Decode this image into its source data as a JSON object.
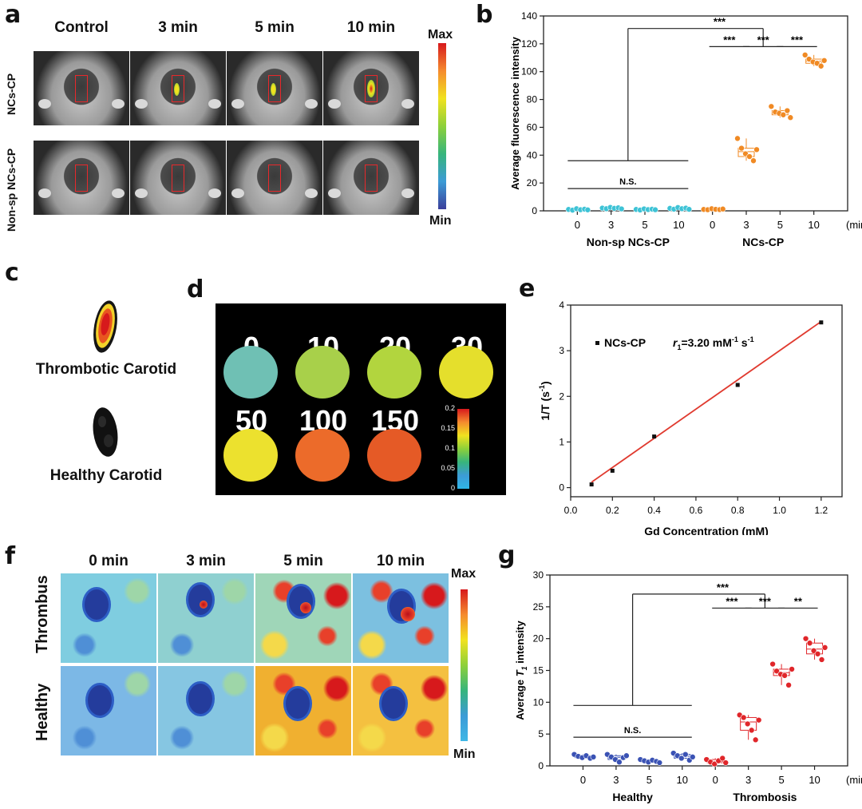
{
  "panels": {
    "a": {
      "label": "a",
      "columns": [
        "Control",
        "3 min",
        "5 min",
        "10 min"
      ],
      "rows": [
        "NCs-CP",
        "Non-sp NCs-CP"
      ],
      "scale": {
        "max": "Max",
        "min": "Min"
      }
    },
    "b": {
      "label": "b"
    },
    "c": {
      "label": "c",
      "items": [
        "Thrombotic Carotid",
        "Healthy Carotid"
      ]
    },
    "d": {
      "label": "d",
      "concentrations": [
        "0",
        "10",
        "20",
        "30",
        "50",
        "100",
        "150"
      ],
      "scale_ticks": [
        "0.2",
        "0.15",
        "0.1",
        "0.05",
        "0"
      ],
      "sample_colors": [
        "#6fc0b4",
        "#a8d04a",
        "#b2d53e",
        "#e5df2c",
        "#ece12e",
        "#ec6b2a",
        "#e55a26"
      ]
    },
    "e": {
      "label": "e"
    },
    "f": {
      "label": "f",
      "columns": [
        "0 min",
        "3 min",
        "5 min",
        "10 min"
      ],
      "rows": [
        "Thrombus",
        "Healthy"
      ],
      "scale": {
        "max": "Max",
        "min": "Min"
      }
    },
    "g": {
      "label": "g"
    }
  },
  "chart_data": [
    {
      "id": "b",
      "type": "scatter",
      "ylabel": "Average fluorescence intensity",
      "ylim": [
        0,
        140
      ],
      "yticks": [
        "0",
        "20",
        "40",
        "60",
        "80",
        "100",
        "120",
        "140"
      ],
      "categories": [
        "0",
        "3",
        "5",
        "10",
        "0",
        "3",
        "5",
        "10"
      ],
      "unit": "(min)",
      "groups": [
        {
          "name": "Non-sp NCs-CP",
          "from": 0,
          "to": 3
        },
        {
          "name": "NCs-CP",
          "from": 4,
          "to": 7
        }
      ],
      "colors": [
        "#3ec3d6",
        "#3ec3d6",
        "#3ec3d6",
        "#3ec3d6",
        "#f08a24",
        "#f08a24",
        "#f08a24",
        "#f08a24"
      ],
      "series": [
        {
          "values": [
            1,
            0.5,
            1.5,
            0.8,
            1.2,
            0.7
          ]
        },
        {
          "values": [
            2,
            1.5,
            2.5,
            1.8,
            2.2,
            1.4
          ]
        },
        {
          "values": [
            1,
            0.6,
            1.4,
            0.9,
            1.2,
            0.8
          ]
        },
        {
          "values": [
            1.8,
            1.2,
            2.4,
            1.5,
            2,
            1.1
          ]
        },
        {
          "values": [
            1,
            0.8,
            1.5,
            1.1,
            0.9,
            1.3
          ]
        },
        {
          "values": [
            52,
            45,
            41,
            39,
            36,
            44
          ]
        },
        {
          "values": [
            75,
            71,
            70,
            69,
            72,
            67
          ]
        },
        {
          "values": [
            112,
            109,
            107,
            106,
            104,
            108
          ]
        }
      ],
      "annotations": {
        "overall": "***",
        "pairs": [
          "***",
          "***",
          "***"
        ],
        "ns": "N.S."
      }
    },
    {
      "id": "e",
      "type": "scatter",
      "xlabel": "Gd Concentration (mM)",
      "ylabel": "1/T (s-1)",
      "xlim": [
        0,
        1.3
      ],
      "ylim": [
        -0.2,
        4
      ],
      "xticks": [
        "0.0",
        "0.2",
        "0.4",
        "0.6",
        "0.8",
        "1.0",
        "1.2"
      ],
      "yticks": [
        "0",
        "1",
        "2",
        "3",
        "4"
      ],
      "x": [
        0.1,
        0.2,
        0.4,
        0.8,
        1.2
      ],
      "y": [
        0.07,
        0.37,
        1.12,
        2.25,
        3.62
      ],
      "fit": {
        "slope": 3.2,
        "intercept": -0.2
      },
      "legend": "NCs-CP",
      "annotation": "r1=3.20 mM-1 s-1",
      "line_color": "#e03a2f"
    },
    {
      "id": "g",
      "type": "scatter",
      "ylabel": "Average T1 intensity",
      "ylim": [
        0,
        30
      ],
      "yticks": [
        "0",
        "5",
        "10",
        "15",
        "20",
        "25",
        "30"
      ],
      "categories": [
        "0",
        "3",
        "5",
        "10",
        "0",
        "3",
        "5",
        "10"
      ],
      "unit": "(min)",
      "groups": [
        {
          "name": "Healthy",
          "from": 0,
          "to": 3
        },
        {
          "name": "Thrombosis",
          "from": 4,
          "to": 7
        }
      ],
      "colors": [
        "#3a52b4",
        "#3a52b4",
        "#3a52b4",
        "#3a52b4",
        "#e0262a",
        "#e0262a",
        "#e0262a",
        "#e0262a"
      ],
      "series": [
        {
          "values": [
            1.8,
            1.5,
            1.3,
            1.6,
            1.2,
            1.4
          ]
        },
        {
          "values": [
            1.8,
            1.4,
            1.0,
            0.6,
            1.3,
            1.6
          ]
        },
        {
          "values": [
            1.0,
            0.8,
            0.6,
            0.9,
            0.7,
            0.5
          ]
        },
        {
          "values": [
            2.0,
            1.6,
            1.2,
            1.8,
            0.9,
            1.4
          ]
        },
        {
          "values": [
            1.0,
            0.6,
            0.3,
            0.8,
            1.2,
            0.5
          ]
        },
        {
          "values": [
            8.0,
            7.6,
            6.6,
            5.6,
            4.1,
            7.2
          ]
        },
        {
          "values": [
            16.0,
            14.9,
            14.4,
            14.2,
            12.7,
            15.2
          ]
        },
        {
          "values": [
            20.0,
            19.3,
            18.1,
            17.6,
            16.7,
            18.6
          ]
        }
      ],
      "annotations": {
        "overall": "***",
        "pairs": [
          "***",
          "***",
          "**"
        ],
        "ns": "N.S."
      }
    }
  ]
}
